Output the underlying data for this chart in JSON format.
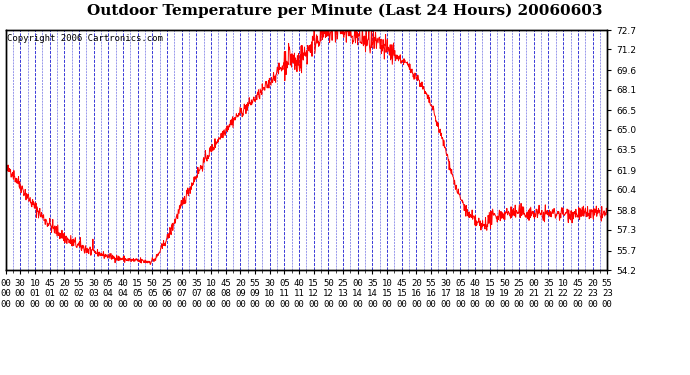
{
  "title": "Outdoor Temperature per Minute (Last 24 Hours) 20060603",
  "copyright_text": "Copyright 2006 Cartronics.com",
  "line_color": "#ff0000",
  "background_color": "#ffffff",
  "plot_bg_color": "#ffffff",
  "grid_color": "#0000cc",
  "text_color": "#000000",
  "yticks": [
    54.2,
    55.7,
    57.3,
    58.8,
    60.4,
    61.9,
    63.5,
    65.0,
    66.5,
    68.1,
    69.6,
    71.2,
    72.7
  ],
  "ylim": [
    54.2,
    72.7
  ],
  "xtick_labels": [
    "00:00",
    "00:30",
    "01:10",
    "01:45",
    "02:20",
    "02:55",
    "03:30",
    "04:05",
    "04:40",
    "05:15",
    "05:50",
    "06:25",
    "07:00",
    "07:35",
    "08:10",
    "08:45",
    "09:20",
    "09:55",
    "10:30",
    "11:05",
    "11:40",
    "12:15",
    "12:50",
    "13:25",
    "14:00",
    "14:35",
    "15:10",
    "15:45",
    "16:20",
    "16:55",
    "17:30",
    "18:05",
    "18:40",
    "19:15",
    "19:50",
    "20:25",
    "21:00",
    "21:35",
    "22:10",
    "22:45",
    "23:20",
    "23:55"
  ],
  "line_width": 0.7,
  "title_fontsize": 11,
  "tick_fontsize": 6.5,
  "copyright_fontsize": 6.5,
  "n_points": 1440
}
